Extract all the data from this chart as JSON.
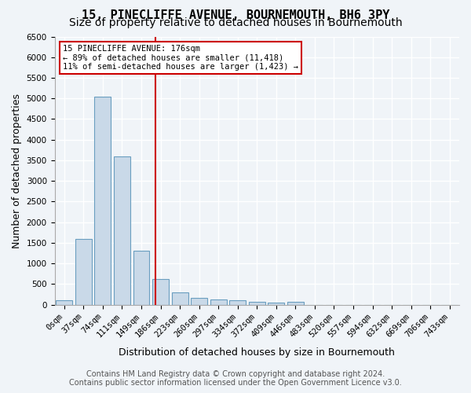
{
  "title": "15, PINECLIFFE AVENUE, BOURNEMOUTH, BH6 3PY",
  "subtitle": "Size of property relative to detached houses in Bournemouth",
  "xlabel": "Distribution of detached houses by size in Bournemouth",
  "ylabel": "Number of detached properties",
  "bar_labels": [
    "0sqm",
    "37sqm",
    "74sqm",
    "111sqm",
    "149sqm",
    "186sqm",
    "223sqm",
    "260sqm",
    "297sqm",
    "334sqm",
    "372sqm",
    "409sqm",
    "446sqm",
    "483sqm",
    "520sqm",
    "557sqm",
    "594sqm",
    "632sqm",
    "669sqm",
    "706sqm",
    "743sqm"
  ],
  "bar_values": [
    100,
    1600,
    5050,
    3600,
    1300,
    620,
    300,
    160,
    130,
    100,
    60,
    40,
    60,
    0,
    0,
    0,
    0,
    0,
    0,
    0,
    0
  ],
  "bar_color": "#c9d9e8",
  "bar_edge_color": "#6a9ec0",
  "property_line_x": 4.86,
  "property_sqm": 176,
  "annotation_text_line1": "15 PINECLIFFE AVENUE: 176sqm",
  "annotation_text_line2": "← 89% of detached houses are smaller (11,418)",
  "annotation_text_line3": "11% of semi-detached houses are larger (1,423) →",
  "annotation_box_color": "#ffffff",
  "annotation_box_edge": "#cc0000",
  "property_line_color": "#cc0000",
  "ylim": [
    0,
    6500
  ],
  "yticks": [
    0,
    500,
    1000,
    1500,
    2000,
    2500,
    3000,
    3500,
    4000,
    4500,
    5000,
    5500,
    6000,
    6500
  ],
  "footer_line1": "Contains HM Land Registry data © Crown copyright and database right 2024.",
  "footer_line2": "Contains public sector information licensed under the Open Government Licence v3.0.",
  "background_color": "#f0f4f8",
  "plot_bg_color": "#f0f4f8",
  "grid_color": "#ffffff",
  "title_fontsize": 11,
  "subtitle_fontsize": 10,
  "axis_fontsize": 9,
  "tick_fontsize": 7.5,
  "footer_fontsize": 7
}
